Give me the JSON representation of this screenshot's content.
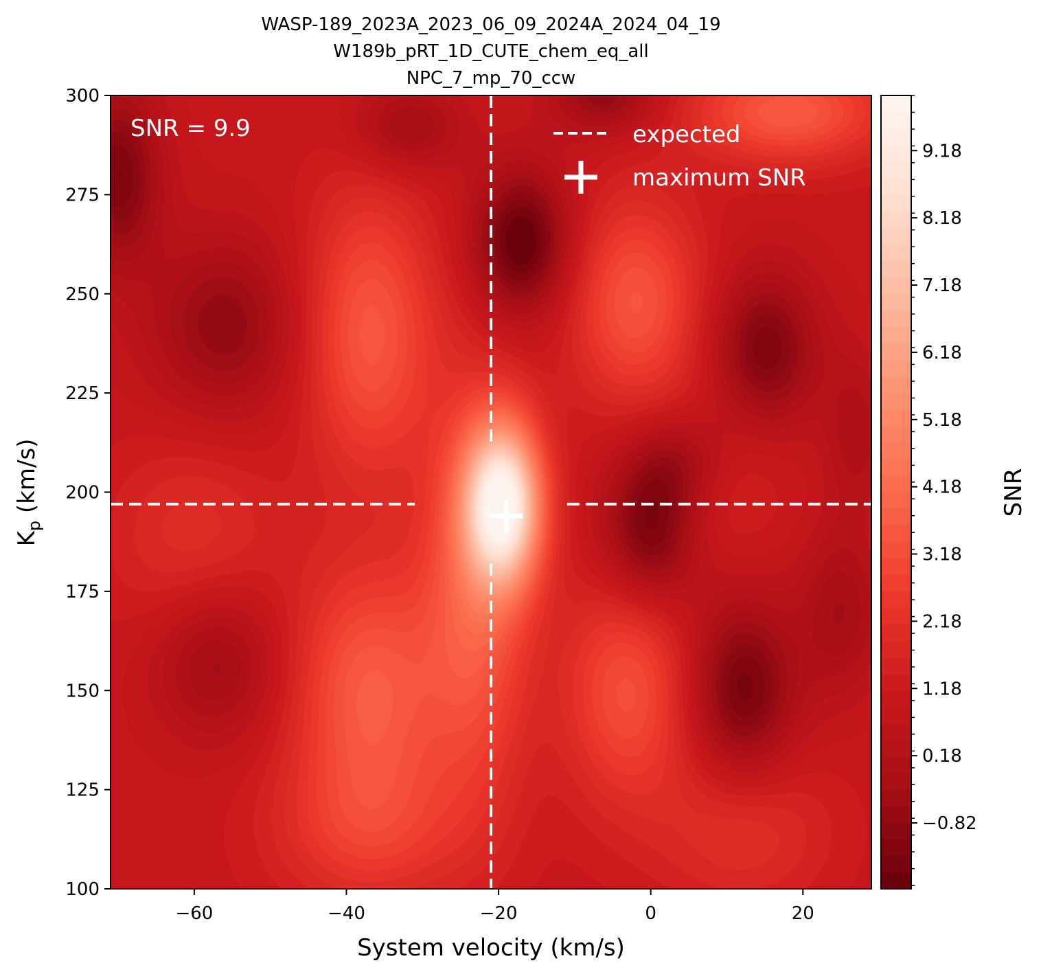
{
  "chart_data": {
    "type": "heatmap",
    "title_lines": [
      "WASP-189_2023A_2023_06_09_2024A_2024_04_19",
      "W189b_pRT_1D_CUTE_chem_eq_all",
      "NPC_7_mp_70_ccw"
    ],
    "xlabel": "System velocity (km/s)",
    "ylabel_main": "K",
    "ylabel_sub": "p",
    "ylabel_unit": " (km/s)",
    "xlim": [
      -71,
      29
    ],
    "ylim": [
      100,
      300
    ],
    "x_ticks": [
      -60,
      -40,
      -20,
      0,
      20
    ],
    "x_tick_labels": [
      "−60",
      "−40",
      "−20",
      "0",
      "20"
    ],
    "y_ticks": [
      100,
      125,
      150,
      175,
      200,
      225,
      250,
      275,
      300
    ],
    "y_tick_labels": [
      "100",
      "125",
      "150",
      "175",
      "200",
      "225",
      "250",
      "275",
      "300"
    ],
    "colorbar": {
      "label": "SNR",
      "range": [
        -1.8,
        10.0
      ],
      "ticks": [
        -0.82,
        0.18,
        1.18,
        2.18,
        3.18,
        4.18,
        5.18,
        6.18,
        7.18,
        8.18,
        9.18
      ],
      "tick_labels": [
        "−0.82",
        "0.18",
        "1.18",
        "2.18",
        "3.18",
        "4.18",
        "5.18",
        "6.18",
        "7.18",
        "8.18",
        "9.18"
      ],
      "colormap": "Reds_r"
    },
    "annotation": "SNR = 9.9",
    "expected": {
      "vsys": -21,
      "kp": 197
    },
    "maximum_snr": {
      "vsys": -19,
      "kp": 194,
      "snr": 9.9
    },
    "legend": {
      "placement": "top-right",
      "entries": [
        {
          "label": "expected",
          "style": "dashed-line"
        },
        {
          "label": "maximum SNR",
          "style": "plus-marker"
        }
      ]
    },
    "features": [
      {
        "vsys": -19.5,
        "kp": 197,
        "snr": 8.3,
        "sx": 3.5,
        "sy": 14
      },
      {
        "vsys": -23,
        "kp": 175,
        "snr": 2.6,
        "sx": 5,
        "sy": 35
      },
      {
        "vsys": -37,
        "kp": 150,
        "snr": 2.6,
        "sx": 7,
        "sy": 22
      },
      {
        "vsys": -37,
        "kp": 240,
        "snr": 2.5,
        "sx": 6,
        "sy": 25
      },
      {
        "vsys": -2,
        "kp": 248,
        "snr": 2.4,
        "sx": 6,
        "sy": 18
      },
      {
        "vsys": -3,
        "kp": 150,
        "snr": 2.2,
        "sx": 6,
        "sy": 20
      },
      {
        "vsys": -37,
        "kp": 115,
        "snr": 1.4,
        "sx": 9,
        "sy": 14
      },
      {
        "vsys": 18,
        "kp": 296,
        "snr": 2.6,
        "sx": 9,
        "sy": 9
      },
      {
        "vsys": -60,
        "kp": 188,
        "snr": 1.1,
        "sx": 8,
        "sy": 18
      },
      {
        "vsys": 12,
        "kp": 115,
        "snr": 1.2,
        "sx": 8,
        "sy": 14
      },
      {
        "vsys": 8,
        "kp": 205,
        "snr": 0.9,
        "sx": 6,
        "sy": 14
      },
      {
        "vsys": -17,
        "kp": 263,
        "snr": -3.0,
        "sx": 4.5,
        "sy": 13
      },
      {
        "vsys": 0,
        "kp": 190,
        "snr": -2.6,
        "sx": 4.5,
        "sy": 13
      },
      {
        "vsys": 4,
        "kp": 208,
        "snr": -1.6,
        "sx": 5,
        "sy": 9
      },
      {
        "vsys": 12,
        "kp": 150,
        "snr": -2.5,
        "sx": 5,
        "sy": 16
      },
      {
        "vsys": 15,
        "kp": 236,
        "snr": -2.3,
        "sx": 5,
        "sy": 14
      },
      {
        "vsys": -56,
        "kp": 242,
        "snr": -1.8,
        "sx": 7,
        "sy": 16
      },
      {
        "vsys": -57,
        "kp": 158,
        "snr": -1.6,
        "sx": 6,
        "sy": 14
      },
      {
        "vsys": -70,
        "kp": 280,
        "snr": -2.3,
        "sx": 4,
        "sy": 16
      },
      {
        "vsys": -6,
        "kp": 300,
        "snr": -1.8,
        "sx": 5,
        "sy": 7
      },
      {
        "vsys": -32,
        "kp": 292,
        "snr": -1.5,
        "sx": 5,
        "sy": 8
      },
      {
        "vsys": 25,
        "kp": 170,
        "snr": -1.3,
        "sx": 4,
        "sy": 15
      },
      {
        "vsys": 27,
        "kp": 215,
        "snr": -1.0,
        "sx": 3,
        "sy": 14
      }
    ],
    "background_snr": 1.0
  }
}
